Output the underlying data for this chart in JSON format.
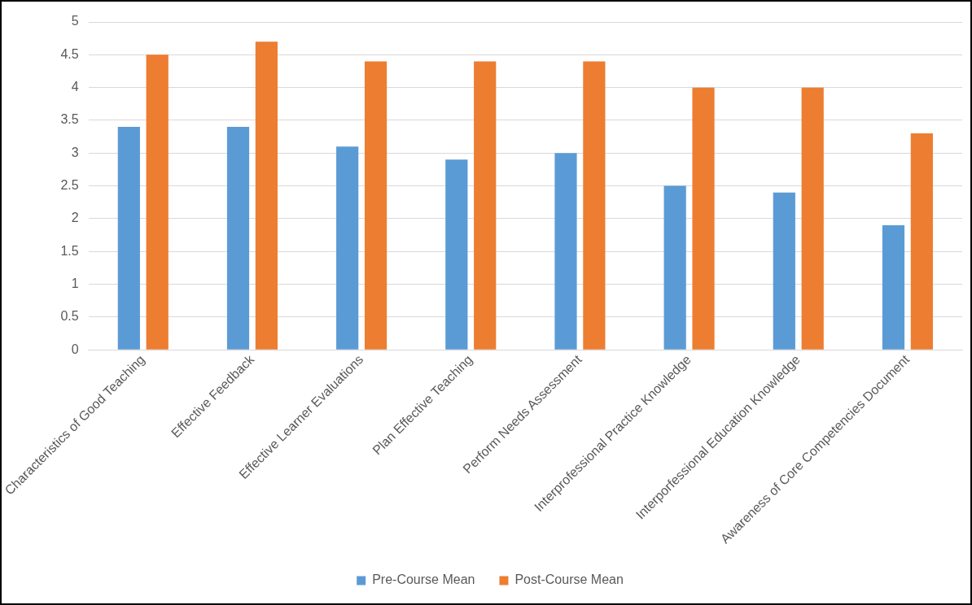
{
  "chart_data": {
    "type": "bar",
    "categories": [
      "Characteristics of Good Teaching",
      "Effective Feedback",
      "Effective Learner Evaluations",
      "Plan Effective Teaching",
      "Perform Needs Assessment",
      "Interprofessional Practice Knowledge",
      "Interporfessional Education Knowledge",
      "Awareness of Core Competencies Document"
    ],
    "series": [
      {
        "name": "Pre-Course Mean",
        "color": "#5b9bd5",
        "values": [
          3.4,
          3.4,
          3.1,
          2.9,
          3.0,
          2.5,
          2.4,
          1.9
        ]
      },
      {
        "name": "Post-Course Mean",
        "color": "#ed7d31",
        "values": [
          4.5,
          4.7,
          4.4,
          4.4,
          4.4,
          4.0,
          4.0,
          3.3
        ]
      }
    ],
    "ylim": [
      0,
      5
    ],
    "yticks": [
      0,
      0.5,
      1,
      1.5,
      2,
      2.5,
      3,
      3.5,
      4,
      4.5,
      5
    ],
    "grid": "y",
    "legend": "bottom"
  }
}
